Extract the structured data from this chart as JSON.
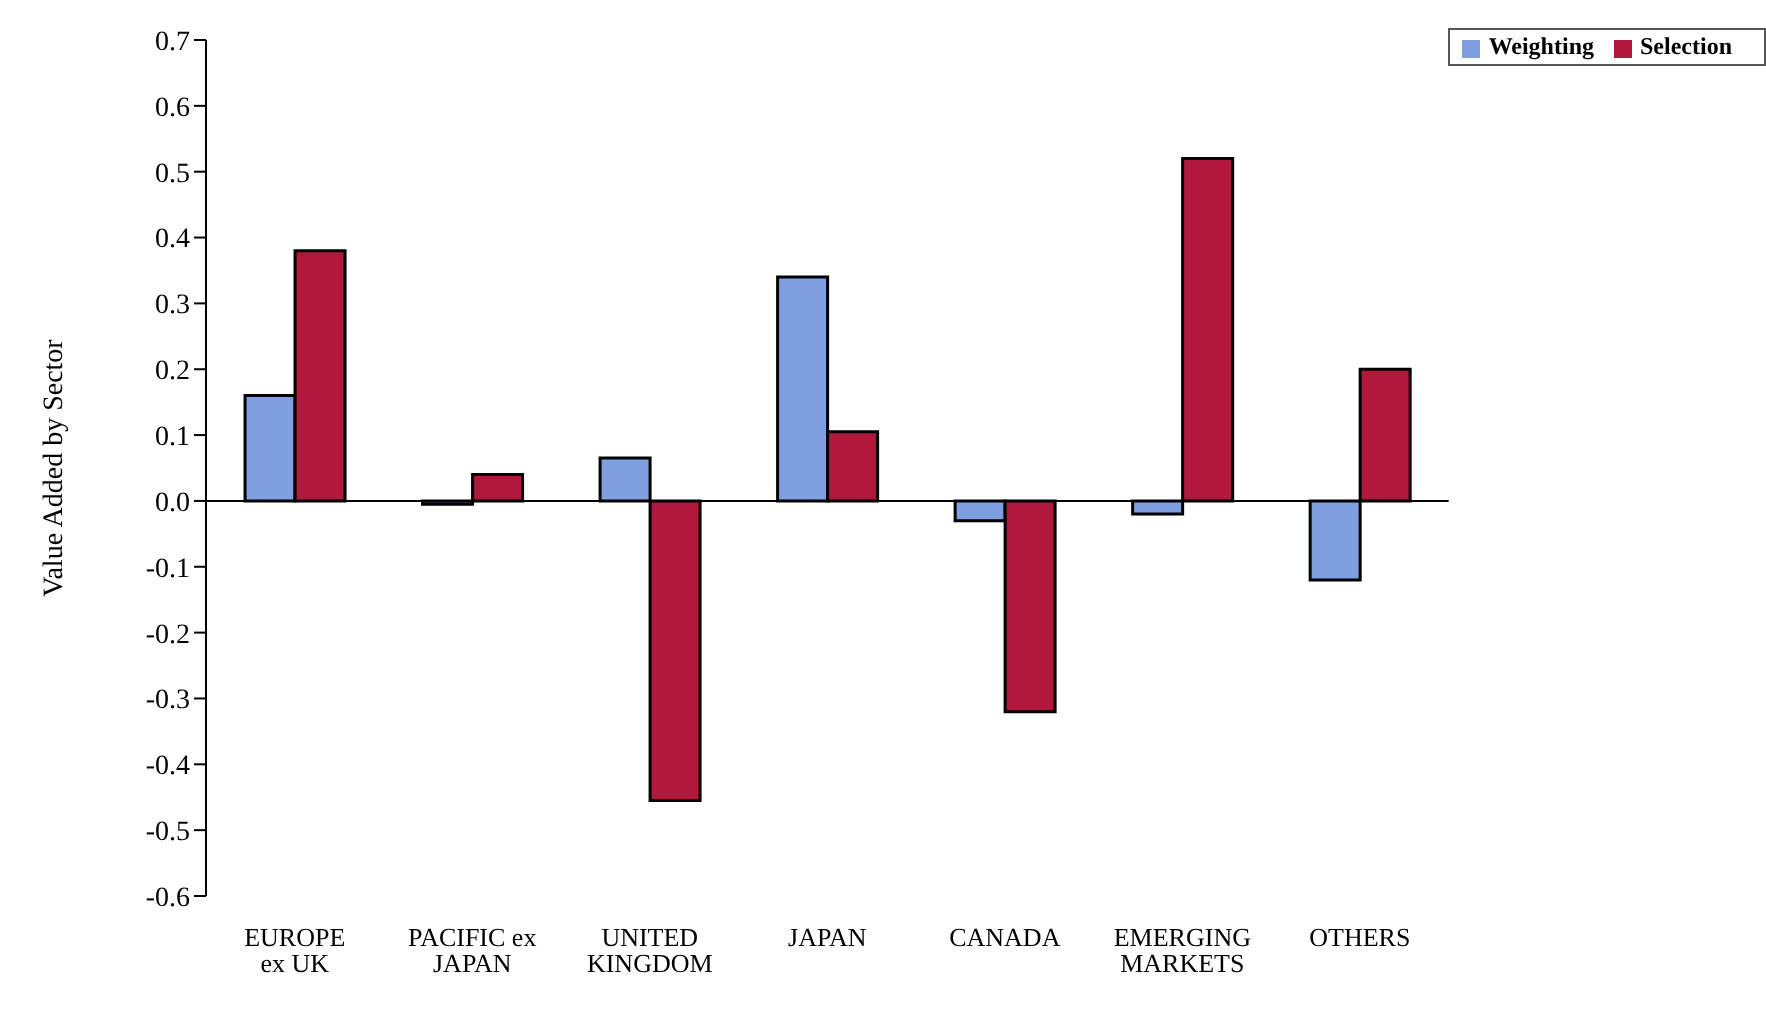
{
  "chart_data": {
    "type": "bar",
    "ylabel": "Value Added by Sector",
    "categories": [
      "EUROPE ex UK",
      "PACIFIC ex JAPAN",
      "UNITED KINGDOM",
      "JAPAN",
      "CANADA",
      "EMERGING MARKETS",
      "OTHERS"
    ],
    "series": [
      {
        "name": "Weighting",
        "color": "#7f9fe0",
        "values": [
          0.16,
          -0.005,
          0.065,
          0.34,
          -0.03,
          -0.02,
          -0.12
        ]
      },
      {
        "name": "Selection",
        "color": "#b0183c",
        "values": [
          0.38,
          0.04,
          -0.455,
          0.105,
          -0.32,
          0.52,
          0.2
        ]
      }
    ],
    "ylim": [
      -0.6,
      0.7
    ],
    "yticks": [
      -0.6,
      -0.5,
      -0.4,
      -0.3,
      -0.2,
      -0.1,
      {
        "value": 0,
        "label": "0.0"
      },
      0.1,
      0.2,
      0.3,
      0.4,
      0.5,
      0.6,
      0.7
    ],
    "legend": "top right"
  }
}
